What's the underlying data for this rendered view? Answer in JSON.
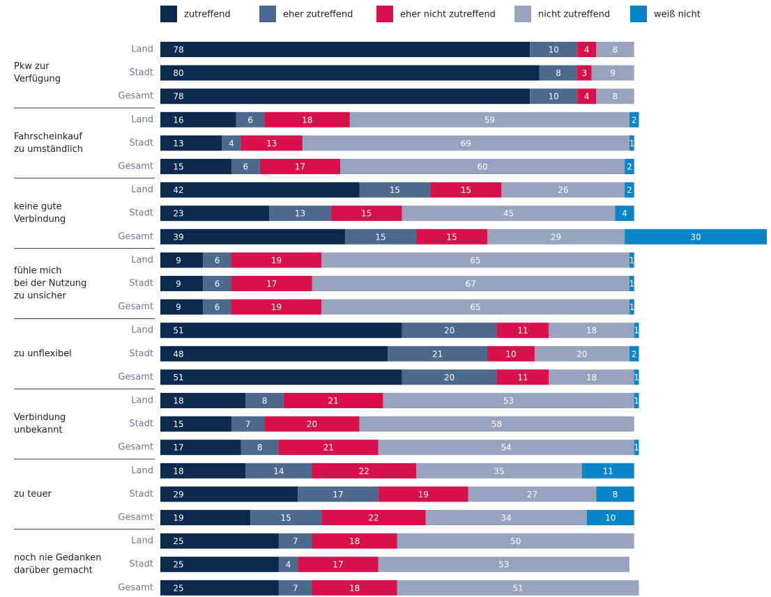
{
  "chart_data": {
    "type": "bar",
    "orientation": "horizontal",
    "stacked": true,
    "groups": [
      [
        "Pkw zur",
        "Verfügung"
      ],
      [
        "Fahrscheinkauf",
        "zu umständlich"
      ],
      [
        "keine gute",
        "Verbindung"
      ],
      [
        "fühle mich",
        "bei der Nutzung",
        "zu unsicher"
      ],
      [
        "zu unflexibel"
      ],
      [
        "Verbindung",
        "unbekannt"
      ],
      [
        "zu teuer"
      ],
      [
        "noch nie Gedanken",
        "darüber gemacht"
      ]
    ],
    "categories": [
      "Land",
      "Stadt",
      "Gesamt",
      "Land",
      "Stadt",
      "Gesamt",
      "Land",
      "Stadt",
      "Gesamt",
      "Land",
      "Stadt",
      "Gesamt",
      "Land",
      "Stadt",
      "Gesamt",
      "Land",
      "Stadt",
      "Gesamt",
      "Land",
      "Stadt",
      "Gesamt",
      "Land",
      "Stadt",
      "Gesamt"
    ],
    "series": [
      {
        "name": "zutreffend",
        "color": "#0b2a4e",
        "values": [
          78,
          80,
          78,
          16,
          13,
          15,
          42,
          23,
          39,
          9,
          9,
          9,
          51,
          48,
          51,
          18,
          15,
          17,
          18,
          29,
          19,
          25,
          25,
          25
        ]
      },
      {
        "name": "eher zutreffend",
        "color": "#4d6a8e",
        "values": [
          10,
          8,
          10,
          6,
          4,
          6,
          15,
          13,
          15,
          6,
          6,
          6,
          20,
          21,
          20,
          8,
          7,
          8,
          14,
          17,
          15,
          7,
          4,
          7
        ]
      },
      {
        "name": "eher nicht zutreffend",
        "color": "#d7124b",
        "values": [
          4,
          3,
          4,
          18,
          13,
          17,
          15,
          15,
          15,
          19,
          17,
          19,
          11,
          10,
          11,
          21,
          20,
          21,
          22,
          19,
          22,
          18,
          17,
          18
        ]
      },
      {
        "name": "nicht zutreffend",
        "color": "#97a3bf",
        "values": [
          8,
          9,
          8,
          59,
          69,
          60,
          26,
          45,
          29,
          65,
          67,
          65,
          18,
          20,
          18,
          53,
          58,
          54,
          35,
          27,
          34,
          50,
          53,
          51
        ]
      },
      {
        "name": "weiß nicht",
        "color": "#0a85c8",
        "values": [
          null,
          null,
          null,
          2,
          1,
          2,
          2,
          4,
          30,
          1,
          1,
          1,
          1,
          2,
          1,
          1,
          null,
          1,
          11,
          8,
          10,
          null,
          null,
          null
        ]
      }
    ]
  }
}
